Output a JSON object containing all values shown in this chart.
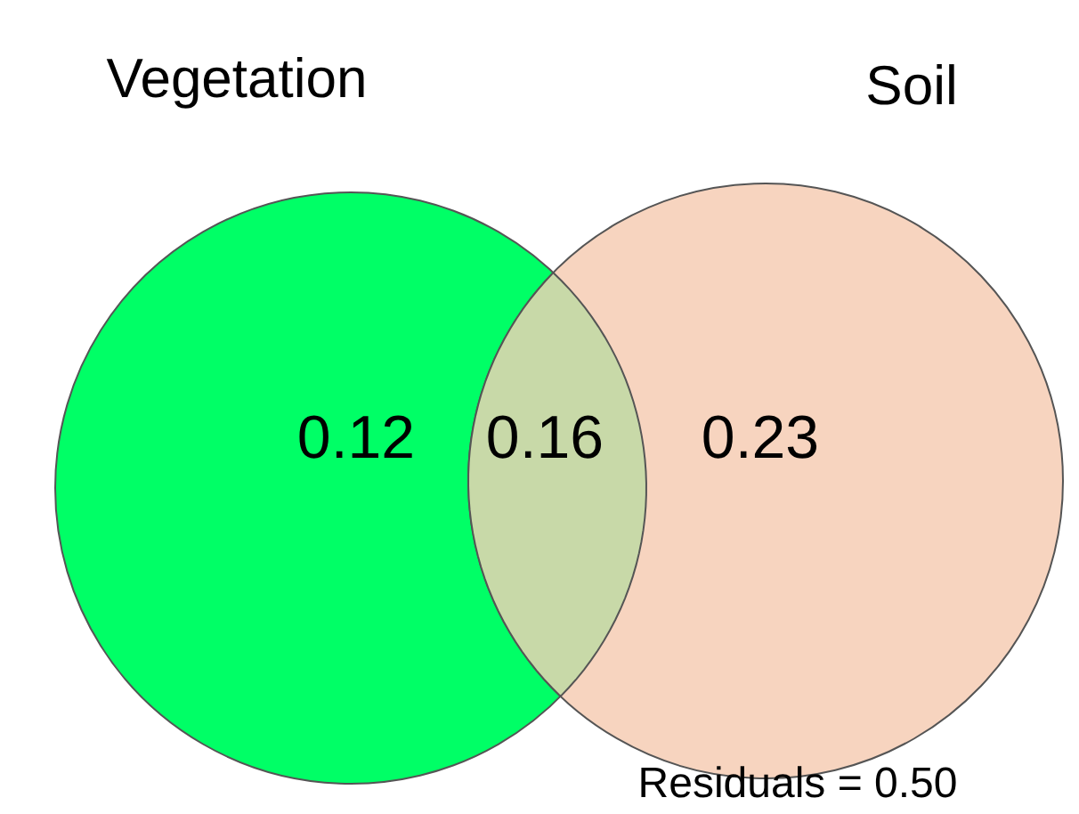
{
  "chart_data": {
    "type": "other",
    "categories": [
      "Vegetation",
      null,
      "Soil"
    ],
    "colors": [
      "#00ff66",
      "#c8d9a8",
      "#f7d4bf"
    ],
    "values": [
      0.12,
      0.16,
      0.23
    ],
    "data_labels": true,
    "annotations": [
      "Residuals = 0.50"
    ]
  }
}
